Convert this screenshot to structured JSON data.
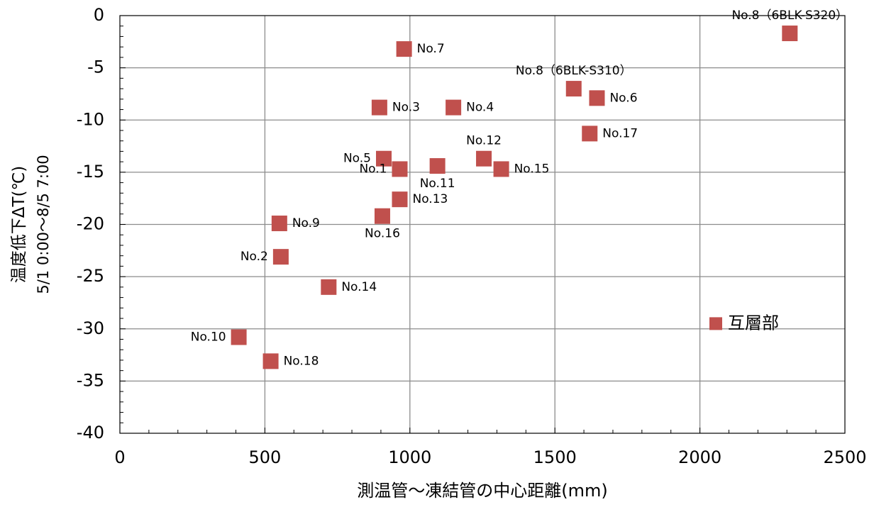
{
  "chart_data": {
    "type": "scatter",
    "xlabel": "測温管～凍結管の中心距離(mm)",
    "ylabel_line1": "温度低下ΔT(℃)",
    "ylabel_line2": "5/1 0:00～8/5 7:00",
    "xlim": [
      0,
      2500
    ],
    "ylim": [
      -40,
      0
    ],
    "x_ticks": [
      0,
      500,
      1000,
      1500,
      2000,
      2500
    ],
    "y_ticks": [
      0,
      -5,
      -10,
      -15,
      -20,
      -25,
      -30,
      -35,
      -40
    ],
    "grid": true,
    "marker_color": "#c0504d",
    "points": [
      {
        "label": "No.1",
        "x": 965,
        "y": -14.7,
        "label_pos": "left"
      },
      {
        "label": "No.2",
        "x": 555,
        "y": -23.1,
        "label_pos": "left"
      },
      {
        "label": "No.3",
        "x": 895,
        "y": -8.8,
        "label_pos": "right"
      },
      {
        "label": "No.4",
        "x": 1150,
        "y": -8.8,
        "label_pos": "right"
      },
      {
        "label": "No.5",
        "x": 910,
        "y": -13.7,
        "label_pos": "left"
      },
      {
        "label": "No.6",
        "x": 1645,
        "y": -7.9,
        "label_pos": "right"
      },
      {
        "label": "No.7",
        "x": 980,
        "y": -3.2,
        "label_pos": "right"
      },
      {
        "label": "No.8（6BLK-S310）",
        "x": 1565,
        "y": -7.0,
        "label_pos": "above"
      },
      {
        "label": "No.8（6BLK-S320）",
        "x": 2310,
        "y": -1.7,
        "label_pos": "above"
      },
      {
        "label": "No.9",
        "x": 550,
        "y": -19.9,
        "label_pos": "right"
      },
      {
        "label": "No.10",
        "x": 410,
        "y": -30.8,
        "label_pos": "left"
      },
      {
        "label": "No.11",
        "x": 1095,
        "y": -14.4,
        "label_pos": "below"
      },
      {
        "label": "No.12",
        "x": 1255,
        "y": -13.7,
        "label_pos": "above"
      },
      {
        "label": "No.13",
        "x": 965,
        "y": -17.6,
        "label_pos": "right"
      },
      {
        "label": "No.14",
        "x": 720,
        "y": -26.0,
        "label_pos": "right"
      },
      {
        "label": "No.15",
        "x": 1315,
        "y": -14.7,
        "label_pos": "right"
      },
      {
        "label": "No.16",
        "x": 905,
        "y": -19.2,
        "label_pos": "below"
      },
      {
        "label": "No.17",
        "x": 1620,
        "y": -11.3,
        "label_pos": "right"
      },
      {
        "label": "No.18",
        "x": 520,
        "y": -33.1,
        "label_pos": "right"
      }
    ],
    "legend": {
      "label": "互層部",
      "placement": "lower-right"
    }
  }
}
